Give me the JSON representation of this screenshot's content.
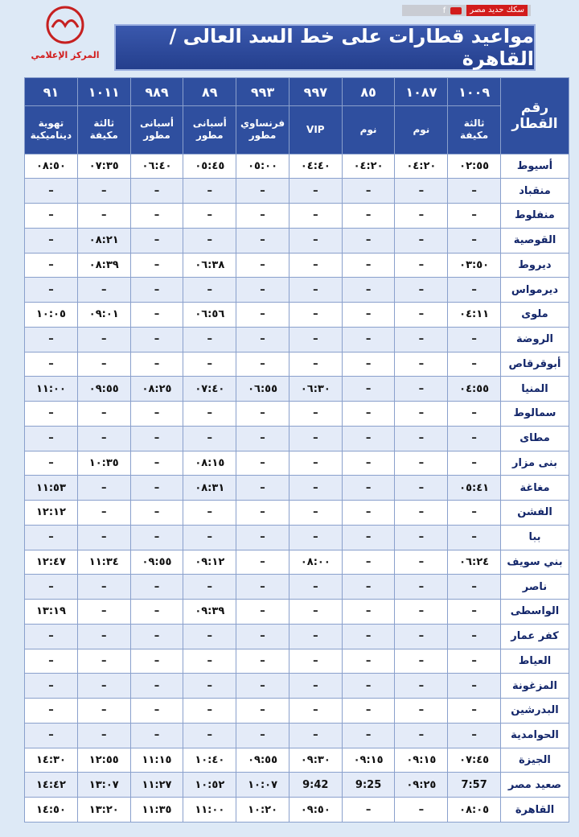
{
  "header": {
    "brand": "سكك حديد مصر",
    "logo_caption": "المركز الإعلامي",
    "title": "مواعيد قطارات على خط السد العالى / القاهرة"
  },
  "table": {
    "corner": "رقم القطار",
    "trains": [
      "١٠٠٩",
      "١٠٨٧",
      "٨٥",
      "٩٩٧",
      "٩٩٣",
      "٨٩",
      "٩٨٩",
      "١٠١١",
      "٩١"
    ],
    "kinds": [
      "ثالثة مكيفة",
      "نوم",
      "نوم",
      "VIP",
      "فرنساوي مطور",
      "أسبانى مطور",
      "أسبانى مطور",
      "ثالثة مكيفة",
      "تهوية ديناميكية"
    ],
    "rows": [
      [
        "أسيوط",
        "٠٢:٥٥",
        "٠٤:٢٠",
        "٠٤:٢٠",
        "٠٤:٤٠",
        "٠٥:٠٠",
        "٠٥:٤٥",
        "٠٦:٤٠",
        "٠٧:٣٥",
        "٠٨:٥٠"
      ],
      [
        "منقباد",
        "–",
        "–",
        "–",
        "–",
        "–",
        "–",
        "–",
        "–",
        "–"
      ],
      [
        "منفلوط",
        "–",
        "–",
        "–",
        "–",
        "–",
        "–",
        "–",
        "–",
        "–"
      ],
      [
        "القوصية",
        "–",
        "–",
        "–",
        "–",
        "–",
        "–",
        "–",
        "٠٨:٢١",
        "–"
      ],
      [
        "ديروط",
        "٠٣:٥٠",
        "–",
        "–",
        "–",
        "–",
        "٠٦:٣٨",
        "–",
        "٠٨:٣٩",
        "–"
      ],
      [
        "ديرمواس",
        "–",
        "–",
        "–",
        "–",
        "–",
        "–",
        "–",
        "–",
        "–"
      ],
      [
        "ملوى",
        "٠٤:١١",
        "–",
        "–",
        "–",
        "–",
        "٠٦:٥٦",
        "–",
        "٠٩:٠١",
        "١٠:٠٥"
      ],
      [
        "الروضة",
        "–",
        "–",
        "–",
        "–",
        "–",
        "–",
        "–",
        "–",
        "–"
      ],
      [
        "أبوقرقاص",
        "–",
        "–",
        "–",
        "–",
        "–",
        "–",
        "–",
        "–",
        "–"
      ],
      [
        "المنيا",
        "٠٤:٥٥",
        "–",
        "–",
        "٠٦:٣٠",
        "٠٦:٥٥",
        "٠٧:٤٠",
        "٠٨:٢٥",
        "٠٩:٥٥",
        "١١:٠٠"
      ],
      [
        "سمالوط",
        "–",
        "–",
        "–",
        "–",
        "–",
        "–",
        "–",
        "–",
        "–"
      ],
      [
        "مطاى",
        "–",
        "–",
        "–",
        "–",
        "–",
        "–",
        "–",
        "–",
        "–"
      ],
      [
        "بنى مزار",
        "–",
        "–",
        "–",
        "–",
        "–",
        "٠٨:١٥",
        "–",
        "١٠:٣٥",
        "–"
      ],
      [
        "مغاغة",
        "٠٥:٤١",
        "–",
        "–",
        "–",
        "–",
        "٠٨:٣١",
        "–",
        "–",
        "١١:٥٣"
      ],
      [
        "الفشن",
        "–",
        "–",
        "–",
        "–",
        "–",
        "–",
        "–",
        "–",
        "١٢:١٢"
      ],
      [
        "ببا",
        "–",
        "–",
        "–",
        "–",
        "–",
        "–",
        "–",
        "–",
        "–"
      ],
      [
        "بني سويف",
        "٠٦:٢٤",
        "–",
        "–",
        "٠٨:٠٠",
        "–",
        "٠٩:١٢",
        "٠٩:٥٥",
        "١١:٣٤",
        "١٢:٤٧"
      ],
      [
        "ناصر",
        "–",
        "–",
        "–",
        "–",
        "–",
        "–",
        "–",
        "–",
        "–"
      ],
      [
        "الواسطى",
        "–",
        "–",
        "–",
        "–",
        "–",
        "٠٩:٣٩",
        "–",
        "–",
        "١٣:١٩"
      ],
      [
        "كفر عمار",
        "–",
        "–",
        "–",
        "–",
        "–",
        "–",
        "–",
        "–",
        "–"
      ],
      [
        "العياط",
        "–",
        "–",
        "–",
        "–",
        "–",
        "–",
        "–",
        "–",
        "–"
      ],
      [
        "المزغونة",
        "–",
        "–",
        "–",
        "–",
        "–",
        "–",
        "–",
        "–",
        "–"
      ],
      [
        "البدرشين",
        "–",
        "–",
        "–",
        "–",
        "–",
        "–",
        "–",
        "–",
        "–"
      ],
      [
        "الحوامدية",
        "–",
        "–",
        "–",
        "–",
        "–",
        "–",
        "–",
        "–",
        "–"
      ],
      [
        "الجيزة",
        "٠٧:٤٥",
        "٠٩:١٥",
        "٠٩:١٥",
        "٠٩:٣٠",
        "٠٩:٥٥",
        "١٠:٤٠",
        "١١:١٥",
        "١٢:٥٥",
        "١٤:٣٠"
      ],
      [
        "صعيد مصر",
        "7:57",
        "٠٩:٢٥",
        "9:25",
        "9:42",
        "١٠:٠٧",
        "١٠:٥٢",
        "١١:٢٧",
        "١٣:٠٧",
        "١٤:٤٢"
      ],
      [
        "القاهرة",
        "٠٨:٠٥",
        "–",
        "–",
        "٠٩:٥٠",
        "١٠:٢٠",
        "١١:٠٠",
        "١١:٣٥",
        "١٣:٢٠",
        "١٤:٥٠"
      ]
    ]
  }
}
